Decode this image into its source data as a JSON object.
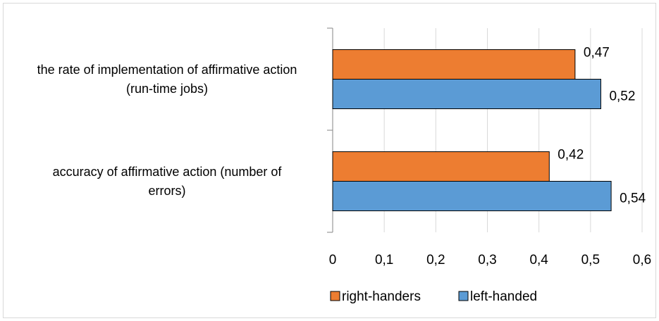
{
  "chart_data": {
    "type": "hbar",
    "categories": [
      "the rate of implementation of affirmative action (run-time jobs)",
      "accuracy of affirmative action (number of errors)"
    ],
    "series": [
      {
        "name": "right-handers",
        "color": "#ed7d31",
        "values": [
          0.47,
          0.42
        ],
        "value_labels": [
          "0,47",
          "0,42"
        ]
      },
      {
        "name": "left-handed",
        "color": "#5b9bd5",
        "values": [
          0.52,
          0.54
        ],
        "value_labels": [
          "0,52",
          "0,54"
        ]
      }
    ],
    "xlim": [
      0,
      0.6
    ],
    "xticks": [
      0,
      {
        "value": 0.1,
        "label": "0,1"
      },
      {
        "value": 0.2,
        "label": "0,2"
      },
      {
        "value": 0.3,
        "label": "0,3"
      },
      {
        "value": 0.4,
        "label": "0,4"
      },
      {
        "value": 0.5,
        "label": "0,5"
      },
      {
        "value": 0.6,
        "label": "0,6"
      }
    ],
    "grid": true,
    "legend": "bottom"
  }
}
